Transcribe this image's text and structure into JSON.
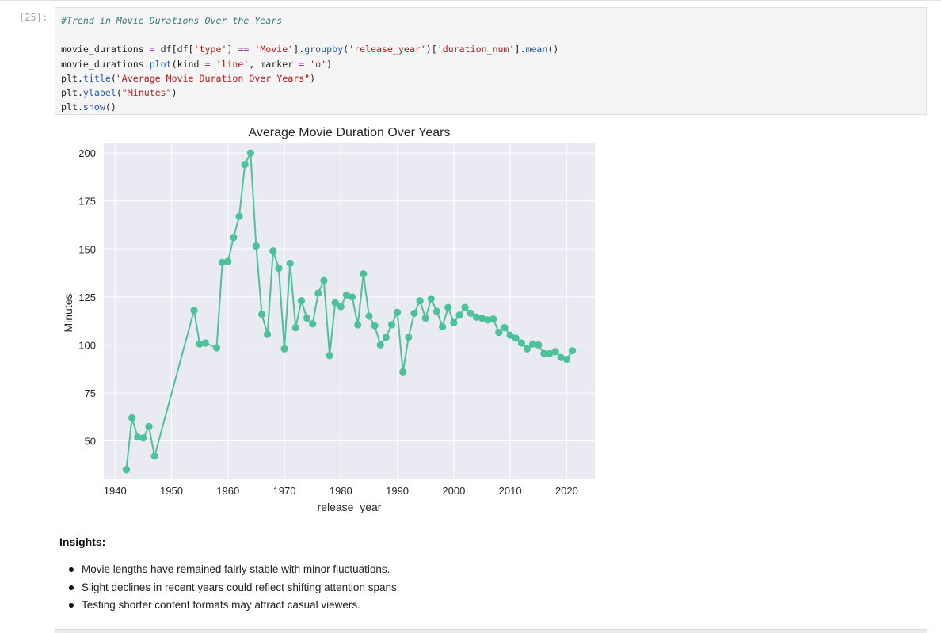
{
  "cell": {
    "prompt": "[25]:",
    "code_lines": [
      {
        "parts": [
          {
            "t": "#Trend in Movie Durations Over the Years",
            "c": "c-cm"
          }
        ]
      },
      {
        "parts": [
          {
            "t": "",
            "c": ""
          }
        ]
      },
      {
        "parts": [
          {
            "t": "movie_durations ",
            "c": ""
          },
          {
            "t": "=",
            "c": "c-op"
          },
          {
            "t": " df[df[",
            "c": ""
          },
          {
            "t": "'type'",
            "c": "c-str"
          },
          {
            "t": "] ",
            "c": ""
          },
          {
            "t": "==",
            "c": "c-op"
          },
          {
            "t": " ",
            "c": ""
          },
          {
            "t": "'Movie'",
            "c": "c-str"
          },
          {
            "t": "].",
            "c": ""
          },
          {
            "t": "groupby",
            "c": "c-fn"
          },
          {
            "t": "(",
            "c": ""
          },
          {
            "t": "'release_year'",
            "c": "c-str"
          },
          {
            "t": ")[",
            "c": ""
          },
          {
            "t": "'duration_num'",
            "c": "c-str"
          },
          {
            "t": "].",
            "c": ""
          },
          {
            "t": "mean",
            "c": "c-fn"
          },
          {
            "t": "()",
            "c": ""
          }
        ]
      },
      {
        "parts": [
          {
            "t": "movie_durations.",
            "c": ""
          },
          {
            "t": "plot",
            "c": "c-fn"
          },
          {
            "t": "(kind ",
            "c": ""
          },
          {
            "t": "=",
            "c": "c-op"
          },
          {
            "t": " ",
            "c": ""
          },
          {
            "t": "'line'",
            "c": "c-str"
          },
          {
            "t": ", marker ",
            "c": ""
          },
          {
            "t": "=",
            "c": "c-op"
          },
          {
            "t": " ",
            "c": ""
          },
          {
            "t": "'o'",
            "c": "c-str"
          },
          {
            "t": ")",
            "c": ""
          }
        ]
      },
      {
        "parts": [
          {
            "t": "plt.",
            "c": ""
          },
          {
            "t": "title",
            "c": "c-fn"
          },
          {
            "t": "(",
            "c": ""
          },
          {
            "t": "\"Average Movie Duration Over Years\"",
            "c": "c-str"
          },
          {
            "t": ")",
            "c": ""
          }
        ]
      },
      {
        "parts": [
          {
            "t": "plt.",
            "c": ""
          },
          {
            "t": "ylabel",
            "c": "c-fn"
          },
          {
            "t": "(",
            "c": ""
          },
          {
            "t": "\"Minutes\"",
            "c": "c-str"
          },
          {
            "t": ")",
            "c": ""
          }
        ]
      },
      {
        "parts": [
          {
            "t": "plt.",
            "c": ""
          },
          {
            "t": "show",
            "c": "c-fn"
          },
          {
            "t": "()",
            "c": ""
          }
        ]
      }
    ]
  },
  "chart_data": {
    "type": "line",
    "title": "Average Movie Duration Over Years",
    "xlabel": "release_year",
    "ylabel": "Minutes",
    "xlim": [
      1938,
      2025
    ],
    "ylim": [
      30,
      205
    ],
    "xticks": [
      1940,
      1950,
      1960,
      1970,
      1980,
      1990,
      2000,
      2010,
      2020
    ],
    "yticks": [
      50,
      75,
      100,
      125,
      150,
      175,
      200
    ],
    "grid": true,
    "color": "#4cc19a",
    "background": "#eaeaf2",
    "x": [
      1942,
      1943,
      1944,
      1945,
      1946,
      1947,
      1954,
      1955,
      1956,
      1958,
      1959,
      1960,
      1961,
      1962,
      1963,
      1964,
      1965,
      1966,
      1967,
      1968,
      1969,
      1970,
      1971,
      1972,
      1973,
      1974,
      1975,
      1976,
      1977,
      1978,
      1979,
      1980,
      1981,
      1982,
      1983,
      1984,
      1985,
      1986,
      1987,
      1988,
      1989,
      1990,
      1991,
      1992,
      1993,
      1994,
      1995,
      1996,
      1997,
      1998,
      1999,
      2000,
      2001,
      2002,
      2003,
      2004,
      2005,
      2006,
      2007,
      2008,
      2009,
      2010,
      2011,
      2012,
      2013,
      2014,
      2015,
      2016,
      2017,
      2018,
      2019,
      2020,
      2021
    ],
    "y": [
      35,
      62,
      52,
      51.5,
      57.5,
      42,
      118,
      100.5,
      101,
      98.5,
      143,
      143.5,
      156,
      167,
      194,
      200,
      151.5,
      116,
      105.5,
      149,
      140,
      98,
      142.5,
      109,
      123,
      114,
      111,
      127,
      133.5,
      94.5,
      122,
      120,
      126,
      125,
      110.5,
      137,
      115,
      110,
      100,
      104,
      110.5,
      117,
      86,
      104,
      116.5,
      123,
      114,
      124,
      117.5,
      109.5,
      119.5,
      111.5,
      115.5,
      119.5,
      116.5,
      114.5,
      114,
      113,
      113.5,
      106.5,
      109,
      105,
      103.5,
      101,
      98,
      100.5,
      100,
      95.5,
      95.5,
      96.5,
      93.5,
      92.5,
      97
    ]
  },
  "insights": {
    "title": "Insights:",
    "items": [
      "Movie lengths have remained fairly stable with minor fluctuations.",
      "Slight declines in recent years could reflect shifting attention spans.",
      "Testing shorter content formats may attract casual viewers."
    ]
  }
}
